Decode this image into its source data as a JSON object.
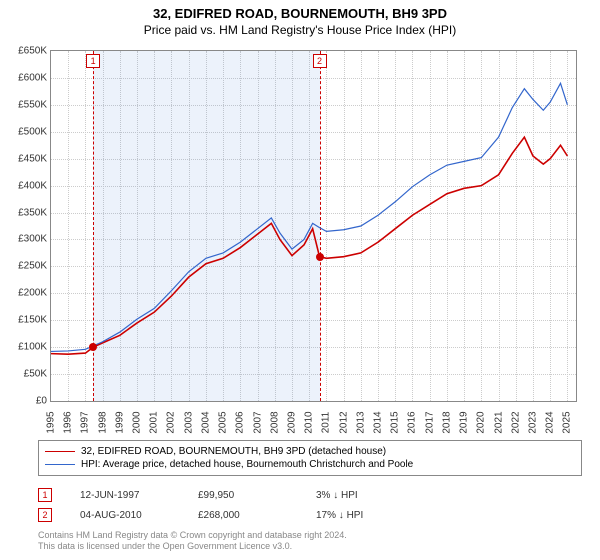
{
  "title": "32, EDIFRED ROAD, BOURNEMOUTH, BH9 3PD",
  "subtitle": "Price paid vs. HM Land Registry's House Price Index (HPI)",
  "chart": {
    "type": "line",
    "background_color": "#ffffff",
    "grid_color": "#cccccc",
    "border_color": "#888888",
    "ylim": [
      0,
      650000
    ],
    "ytick_step": 50000,
    "ytick_labels": [
      "£0",
      "£50K",
      "£100K",
      "£150K",
      "£200K",
      "£250K",
      "£300K",
      "£350K",
      "£400K",
      "£450K",
      "£500K",
      "£550K",
      "£600K",
      "£650K"
    ],
    "x_years": [
      1995,
      1996,
      1997,
      1998,
      1999,
      2000,
      2001,
      2002,
      2003,
      2004,
      2005,
      2006,
      2007,
      2008,
      2009,
      2010,
      2011,
      2012,
      2013,
      2014,
      2015,
      2016,
      2017,
      2018,
      2019,
      2020,
      2021,
      2022,
      2023,
      2024,
      2025
    ],
    "xlim": [
      1995,
      2025.5
    ],
    "shaded_band": {
      "x_start": 1997.45,
      "x_end": 2010.6,
      "color": "rgba(100,150,220,0.12)"
    },
    "series": [
      {
        "name": "price_paid",
        "label": "32, EDIFRED ROAD, BOURNEMOUTH, BH9 3PD (detached house)",
        "color": "#cc0000",
        "line_width": 1.6,
        "points": [
          [
            1995.0,
            88000
          ],
          [
            1996.0,
            87000
          ],
          [
            1997.0,
            89000
          ],
          [
            1997.45,
            99950
          ],
          [
            1998.0,
            108000
          ],
          [
            1999.0,
            122000
          ],
          [
            2000.0,
            145000
          ],
          [
            2001.0,
            165000
          ],
          [
            2002.0,
            195000
          ],
          [
            2003.0,
            230000
          ],
          [
            2004.0,
            255000
          ],
          [
            2005.0,
            265000
          ],
          [
            2006.0,
            285000
          ],
          [
            2007.0,
            310000
          ],
          [
            2007.8,
            330000
          ],
          [
            2008.3,
            300000
          ],
          [
            2009.0,
            270000
          ],
          [
            2009.7,
            290000
          ],
          [
            2010.2,
            320000
          ],
          [
            2010.6,
            268000
          ],
          [
            2011.0,
            265000
          ],
          [
            2012.0,
            268000
          ],
          [
            2013.0,
            275000
          ],
          [
            2014.0,
            295000
          ],
          [
            2015.0,
            320000
          ],
          [
            2016.0,
            345000
          ],
          [
            2017.0,
            365000
          ],
          [
            2018.0,
            385000
          ],
          [
            2019.0,
            395000
          ],
          [
            2020.0,
            400000
          ],
          [
            2021.0,
            420000
          ],
          [
            2021.8,
            460000
          ],
          [
            2022.5,
            490000
          ],
          [
            2023.0,
            455000
          ],
          [
            2023.6,
            440000
          ],
          [
            2024.0,
            450000
          ],
          [
            2024.6,
            475000
          ],
          [
            2025.0,
            455000
          ]
        ]
      },
      {
        "name": "hpi",
        "label": "HPI: Average price, detached house, Bournemouth Christchurch and Poole",
        "color": "#3366cc",
        "line_width": 1.2,
        "points": [
          [
            1995.0,
            92000
          ],
          [
            1996.0,
            93000
          ],
          [
            1997.0,
            96000
          ],
          [
            1998.0,
            110000
          ],
          [
            1999.0,
            128000
          ],
          [
            2000.0,
            152000
          ],
          [
            2001.0,
            172000
          ],
          [
            2002.0,
            205000
          ],
          [
            2003.0,
            240000
          ],
          [
            2004.0,
            265000
          ],
          [
            2005.0,
            275000
          ],
          [
            2006.0,
            295000
          ],
          [
            2007.0,
            320000
          ],
          [
            2007.8,
            340000
          ],
          [
            2008.3,
            312000
          ],
          [
            2009.0,
            282000
          ],
          [
            2009.7,
            300000
          ],
          [
            2010.2,
            330000
          ],
          [
            2010.6,
            322000
          ],
          [
            2011.0,
            315000
          ],
          [
            2012.0,
            318000
          ],
          [
            2013.0,
            325000
          ],
          [
            2014.0,
            345000
          ],
          [
            2015.0,
            370000
          ],
          [
            2016.0,
            398000
          ],
          [
            2017.0,
            420000
          ],
          [
            2018.0,
            438000
          ],
          [
            2019.0,
            445000
          ],
          [
            2020.0,
            452000
          ],
          [
            2021.0,
            490000
          ],
          [
            2021.8,
            545000
          ],
          [
            2022.5,
            580000
          ],
          [
            2023.0,
            560000
          ],
          [
            2023.6,
            540000
          ],
          [
            2024.0,
            555000
          ],
          [
            2024.6,
            590000
          ],
          [
            2025.0,
            550000
          ]
        ]
      }
    ],
    "sale_markers": [
      {
        "n": "1",
        "x": 1997.45,
        "y": 99950
      },
      {
        "n": "2",
        "x": 2010.6,
        "y": 268000
      }
    ]
  },
  "legend": {
    "items": [
      {
        "color": "#cc0000",
        "width": 1.8,
        "label": "32, EDIFRED ROAD, BOURNEMOUTH, BH9 3PD (detached house)"
      },
      {
        "color": "#3366cc",
        "width": 1.2,
        "label": "HPI: Average price, detached house, Bournemouth Christchurch and Poole"
      }
    ]
  },
  "sales": [
    {
      "n": "1",
      "date": "12-JUN-1997",
      "price": "£99,950",
      "diff": "3% ↓ HPI"
    },
    {
      "n": "2",
      "date": "04-AUG-2010",
      "price": "£268,000",
      "diff": "17% ↓ HPI"
    }
  ],
  "footer_line1": "Contains HM Land Registry data © Crown copyright and database right 2024.",
  "footer_line2": "This data is licensed under the Open Government Licence v3.0."
}
